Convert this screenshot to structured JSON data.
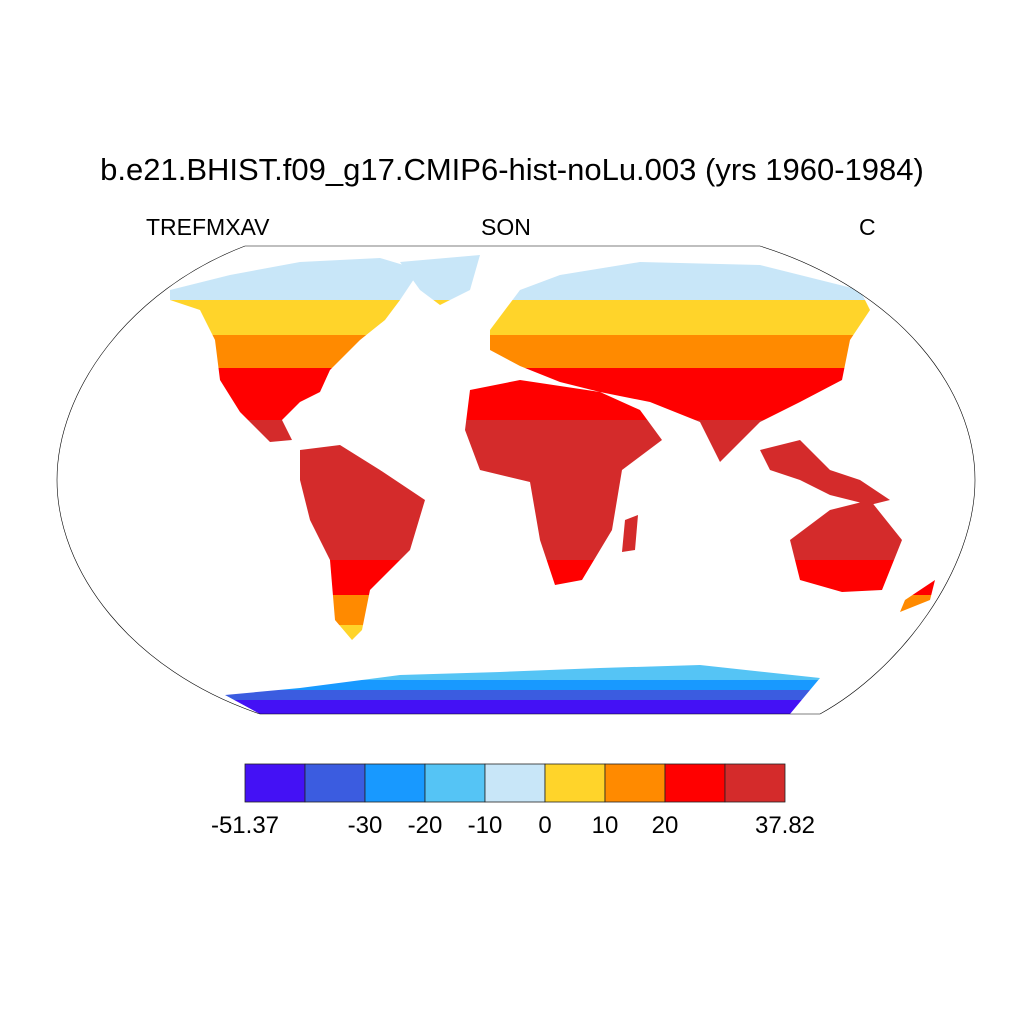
{
  "title": "b.e21.BHIST.f09_g17.CMIP6-hist-noLu.003 (yrs 1960-1984)",
  "left_label": "TREFMXAV",
  "center_label": "SON",
  "right_label": "C",
  "chart_data": {
    "type": "heatmap",
    "projection": "Robinson",
    "variable": "TREFMXAV",
    "season": "SON",
    "units": "C",
    "colorbar": {
      "min": -51.37,
      "max": 37.82,
      "levels": [
        -40,
        -30,
        -20,
        -10,
        0,
        10,
        20,
        30
      ],
      "colors": [
        "#4411F5",
        "#3B5CE0",
        "#1899FF",
        "#55C4F5",
        "#C8E6F8",
        "#FFD42A",
        "#FF8A00",
        "#FF0000",
        "#D42B2B"
      ],
      "tick_labels": [
        {
          "label": "-51.37",
          "at": "min"
        },
        {
          "label": "-30",
          "at": -30
        },
        {
          "label": "-20",
          "at": -20
        },
        {
          "label": "-10",
          "at": -10
        },
        {
          "label": "0",
          "at": 0
        },
        {
          "label": "10",
          "at": 10
        },
        {
          "label": "20",
          "at": 20
        },
        {
          "label": "37.82",
          "at": "max"
        }
      ]
    }
  }
}
